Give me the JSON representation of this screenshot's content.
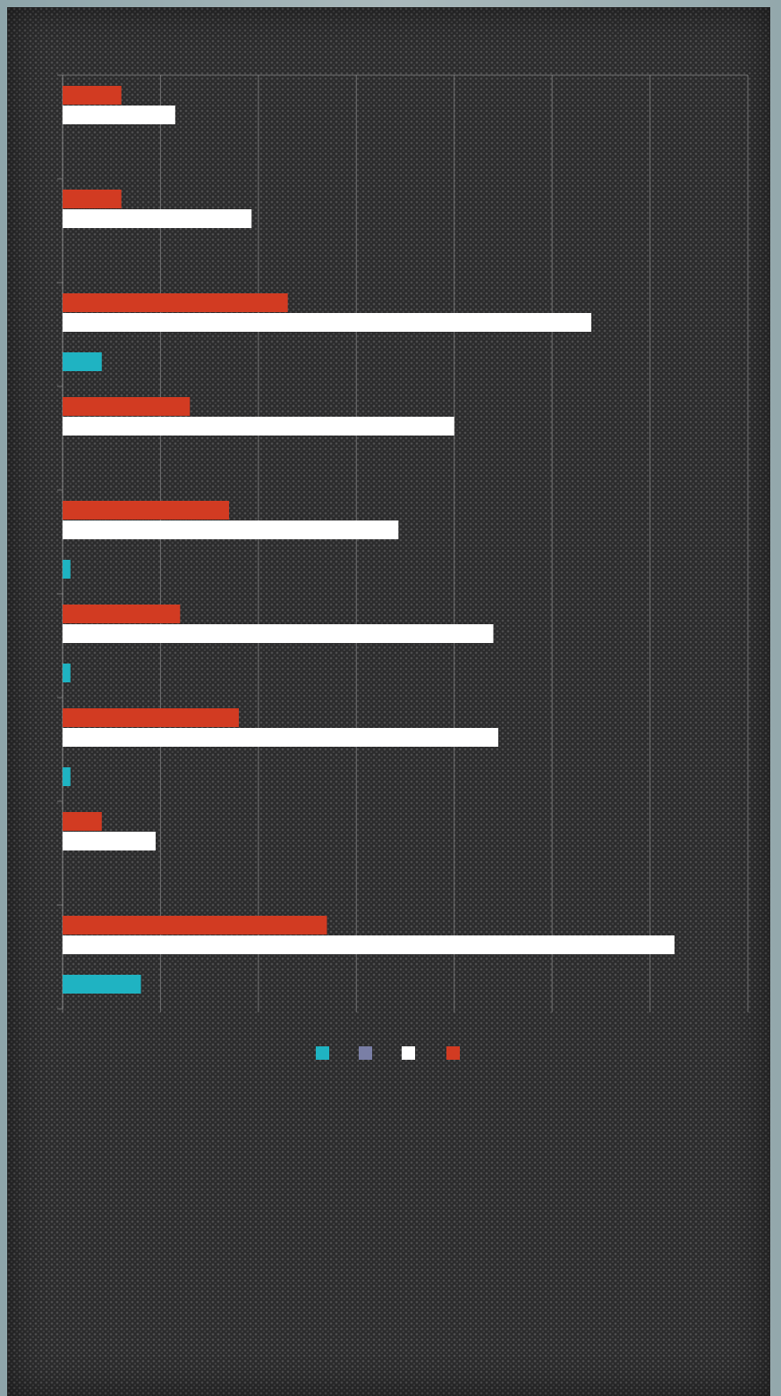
{
  "chart_data": {
    "type": "bar",
    "orientation": "horizontal",
    "categories": [
      "",
      "",
      "",
      "",
      "",
      "",
      "",
      "",
      ""
    ],
    "series": [
      {
        "name": "",
        "color": "#d23b22",
        "values": [
          0.6,
          0.6,
          2.3,
          1.3,
          1.7,
          1.2,
          1.8,
          0.4,
          2.7
        ]
      },
      {
        "name": "",
        "color": "#ffffff",
        "values": [
          1.15,
          1.93,
          5.4,
          4.0,
          3.43,
          4.4,
          4.45,
          0.95,
          6.25
        ]
      },
      {
        "name": "",
        "color": "#7a7fa6",
        "values": [
          0,
          0,
          0,
          0,
          0,
          0,
          0,
          0,
          0
        ]
      },
      {
        "name": "",
        "color": "#1fb3c2",
        "values": [
          0,
          0,
          0.4,
          0,
          0.08,
          0.08,
          0.08,
          0,
          0.8
        ]
      }
    ],
    "xlim": [
      0,
      7
    ],
    "xticks": [
      "",
      "",
      "",
      "",
      "",
      "",
      "",
      ""
    ],
    "grid": true,
    "legend": "bottom",
    "title": "",
    "xlabel": "",
    "ylabel": ""
  }
}
